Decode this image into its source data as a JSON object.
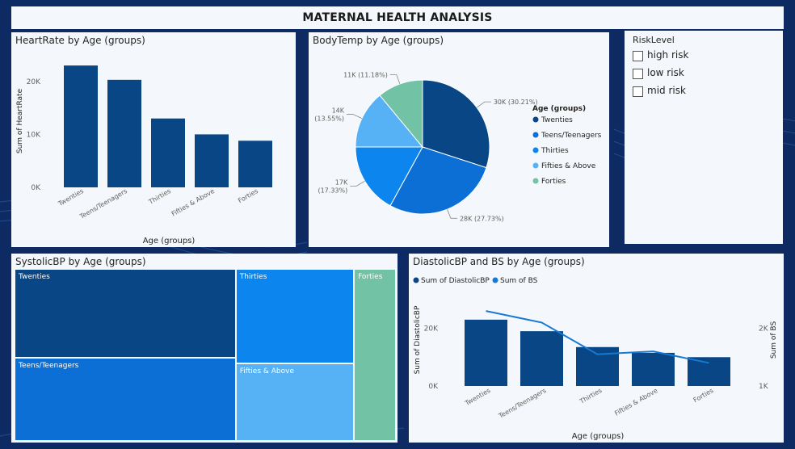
{
  "report_title": "MATERNAL HEALTH ANALYSIS",
  "colors": {
    "background": "#0d2a63",
    "panel": "#f4f7fb",
    "dark_blue": "#084685",
    "mid_blue": "#0b6fd6",
    "bright_blue": "#0c86ee",
    "light_blue": "#56b1f5",
    "teal": "#72c2a6",
    "line_blue": "#1679d3"
  },
  "heartrate_chart": {
    "title": "HeartRate by Age (groups)",
    "ylabel": "Sum of HeartRate",
    "xlabel": "Age (groups)",
    "y_ticks": [
      "0K",
      "10K",
      "20K"
    ],
    "y_tick_values": [
      0,
      10000,
      20000
    ]
  },
  "bodytemp_chart": {
    "title": "BodyTemp by Age (groups)",
    "legend_title": "Age (groups)",
    "slice_labels": [
      "30K (30.21%)",
      "28K (27.73%)",
      "17K\n(17.33%)",
      "14K\n(13.55%)",
      "11K (11.18%)"
    ]
  },
  "risk_slicer": {
    "title": "RiskLevel",
    "items": [
      "high risk",
      "low risk",
      "mid risk"
    ]
  },
  "systolic_chart": {
    "title": "SystolicBP by Age (groups)"
  },
  "diastolic_chart": {
    "title": "DiastolicBP and BS by Age (groups)",
    "legend": [
      "Sum of DiastolicBP",
      "Sum of BS"
    ],
    "ylabel_left": "Sum of DiastolicBP",
    "ylabel_right": "Sum of BS",
    "xlabel": "Age (groups)",
    "y_left_ticks": [
      "0K",
      "20K"
    ],
    "y_left_tick_values": [
      0,
      20000
    ],
    "y_right_ticks": [
      "1K",
      "2K"
    ],
    "y_right_tick_values": [
      1000,
      2000
    ]
  },
  "chart_data": [
    {
      "type": "bar",
      "title": "HeartRate by Age (groups)",
      "categories": [
        "Twenties",
        "Teens/Teenagers",
        "Thirties",
        "Fifties & Above",
        "Forties"
      ],
      "values": [
        23000,
        20300,
        13000,
        10000,
        8800
      ],
      "xlabel": "Age (groups)",
      "ylabel": "Sum of HeartRate",
      "ylim": [
        0,
        25000
      ],
      "grid": false
    },
    {
      "type": "pie",
      "title": "BodyTemp by Age (groups)",
      "categories": [
        "Twenties",
        "Teens/Teenagers",
        "Thirties",
        "Fifties & Above",
        "Forties"
      ],
      "values": [
        30000,
        28000,
        17000,
        14000,
        11000
      ],
      "percentages": [
        30.21,
        27.73,
        17.33,
        13.55,
        11.18
      ],
      "legend": "right"
    },
    {
      "type": "treemap",
      "title": "SystolicBP by Age (groups)",
      "categories": [
        "Twenties",
        "Teens/Teenagers",
        "Thirties",
        "Fifties & Above",
        "Forties"
      ],
      "values": [
        30,
        28,
        17,
        14,
        11
      ]
    },
    {
      "type": "bar",
      "title": "DiastolicBP and BS by Age (groups)",
      "categories": [
        "Twenties",
        "Teens/Teenagers",
        "Thirties",
        "Fifties & Above",
        "Forties"
      ],
      "series": [
        {
          "name": "Sum of DiastolicBP",
          "type": "bar",
          "axis": "left",
          "values": [
            23000,
            19000,
            13500,
            11500,
            10000
          ]
        },
        {
          "name": "Sum of BS",
          "type": "line",
          "axis": "right",
          "values": [
            2300,
            2100,
            1550,
            1600,
            1400
          ]
        }
      ],
      "xlabel": "Age (groups)",
      "ylim_left": [
        0,
        28000
      ],
      "ylim_right": [
        1000,
        2400
      ],
      "legend": "top-left"
    }
  ]
}
